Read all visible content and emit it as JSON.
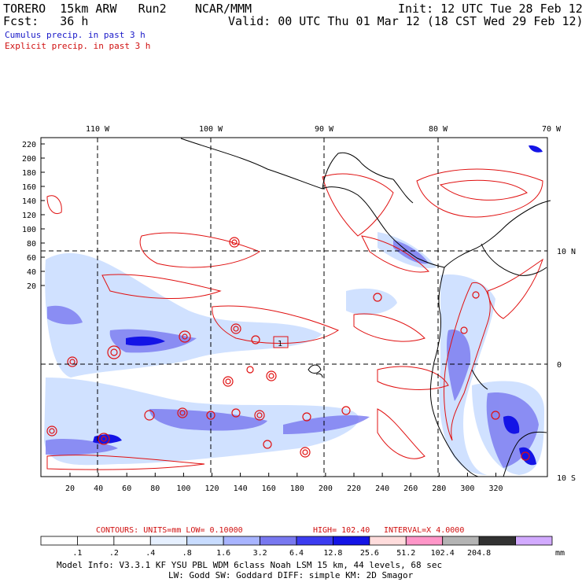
{
  "header": {
    "model": "TORERO  15km ARW   Run2    NCAR/MMM",
    "init": "Init: 12 UTC Tue 28 Feb 12",
    "forecast": "Fcst:   36 h",
    "valid": "Valid: 00 UTC Thu 01 Mar 12 (18 CST Wed 29 Feb 12)",
    "cumulus_label": "Cumulus precip. in past 3 h",
    "explicit_label": "Explicit precip. in past 3 h"
  },
  "map": {
    "top_lon_labels": [
      "110 W",
      "100 W",
      "90 W",
      "80 W",
      "70 W"
    ],
    "right_lat_labels": [
      "10 N",
      "0",
      "10 S"
    ],
    "y_ticks": [
      "220",
      "200",
      "180",
      "160",
      "140",
      "120",
      "100",
      "80",
      "60",
      "40",
      "20"
    ],
    "x_ticks": [
      "20",
      "40",
      "60",
      "80",
      "100",
      "120",
      "140",
      "160",
      "180",
      "200",
      "220",
      "240",
      "260",
      "280",
      "300",
      "320"
    ],
    "station_marker": "1"
  },
  "contour_info": {
    "contours": "CONTOURS:  UNITS=mm  LOW= 0.10000",
    "high": "HIGH=  102.40",
    "interval": "INTERVAL=X  4.0000"
  },
  "colorbar": {
    "levels": [
      ".1",
      ".2",
      ".4",
      ".8",
      "1.6",
      "3.2",
      "6.4",
      "12.8",
      "25.6",
      "51.2",
      "102.4",
      "204.8"
    ],
    "unit": "mm",
    "colors": [
      "#ffffff",
      "#ffffff",
      "#ffffff",
      "#e6f0ff",
      "#c8dcff",
      "#a8b4ff",
      "#7878f0",
      "#3c3cf0",
      "#1414e6",
      "#ffdcdc",
      "#ff96c8",
      "#b4b4b4",
      "#323232",
      "#d2aaff"
    ]
  },
  "footer": {
    "line1": "Model Info: V3.3.1   KF     YSU PBL  WDM 6class  Noah LSM  15 km,    44 levels,    68 sec",
    "line2": "LW: Godd SW: Goddard DIFF: simple KM: 2D Smagor"
  }
}
